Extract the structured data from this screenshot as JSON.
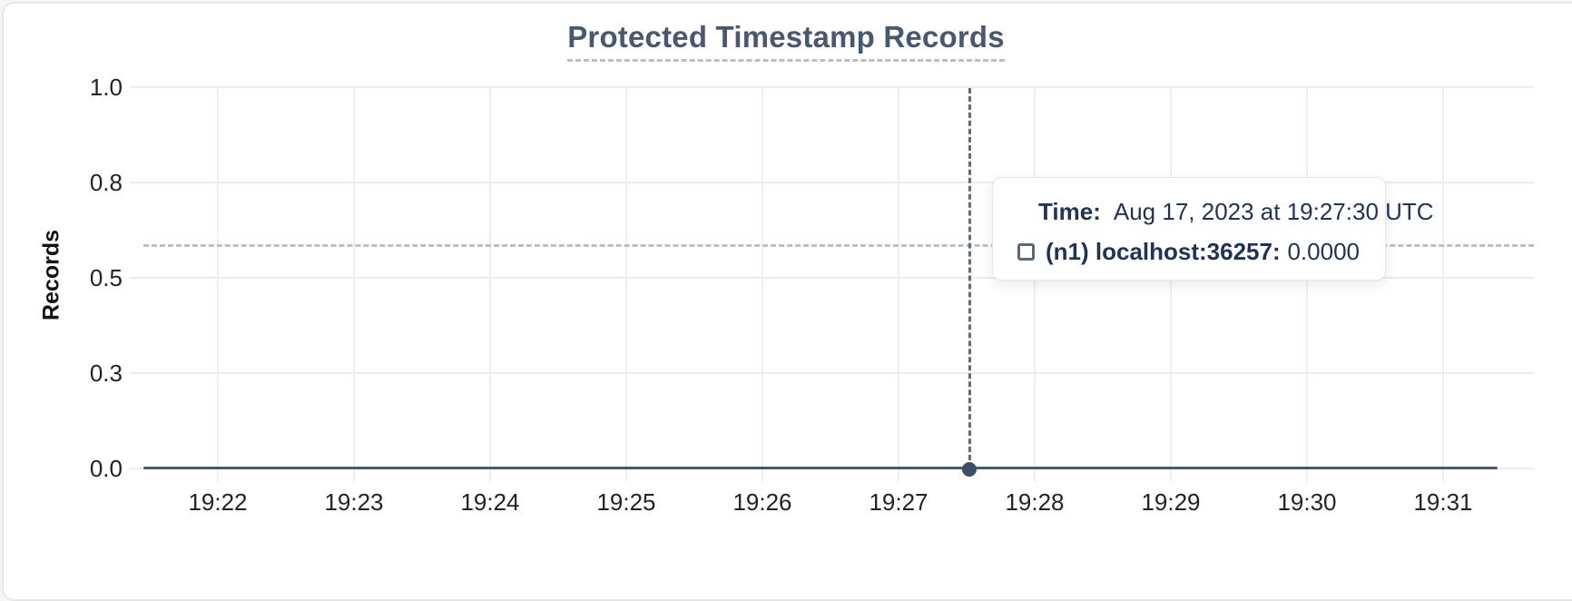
{
  "card": {
    "title": "Protected Timestamp Records"
  },
  "chart_data": {
    "type": "line",
    "title": "Protected Timestamp Records",
    "xlabel": "",
    "ylabel": "Records",
    "x_ticks": [
      "19:22",
      "19:23",
      "19:24",
      "19:25",
      "19:26",
      "19:27",
      "19:28",
      "19:29",
      "19:30",
      "19:31"
    ],
    "y_ticks": [
      "1.0",
      "0.8",
      "0.5",
      "0.3",
      "0.0"
    ],
    "ylim": [
      0.0,
      1.0
    ],
    "grid": true,
    "legend_position": "none",
    "series": [
      {
        "name": "(n1) localhost:36257",
        "color": "#475872",
        "values": [
          0,
          0,
          0,
          0,
          0,
          0,
          0,
          0,
          0,
          0
        ]
      }
    ],
    "hovered_point": {
      "x": "19:27:30",
      "y": 0.0
    }
  },
  "tooltip": {
    "time_label": "Time:",
    "time_value": "Aug 17, 2023 at 19:27:30 UTC",
    "series_label": "(n1) localhost:36257:",
    "series_value": "0.0000"
  },
  "colors": {
    "title": "#475872",
    "axis_text": "#1f2227",
    "grid": "#ececec",
    "series": "#475872",
    "hover_point": "#3e4e66",
    "crosshair_vertical": "#5d6e84",
    "crosshair_horizontal": "#b7c1cb",
    "tooltip_text": "#1e3356",
    "tooltip_border": "#e4e6ea",
    "card_border": "#e6e7e9",
    "card_background": "#ffffff"
  }
}
